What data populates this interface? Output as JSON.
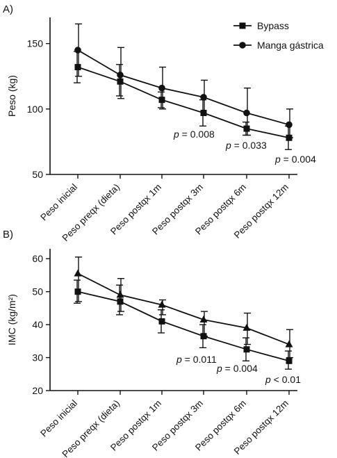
{
  "chart_data": [
    {
      "panel_label": "A)",
      "type": "line",
      "ylabel": "Peso (kg)",
      "ylim": [
        50,
        170
      ],
      "yticks": [
        "150",
        "100",
        "50"
      ],
      "ytick_values": [
        150,
        100,
        50
      ],
      "categories": [
        "Peso inicial",
        "Peso preqx (dieta)",
        "Peso postqx 1m",
        "Peso postqx 3m",
        "Peso postqx 6m",
        "Peso postqx 12m"
      ],
      "legend": {
        "position": "top-right",
        "items": [
          "Bypass",
          "Manga gástrica"
        ]
      },
      "series": [
        {
          "name": "Bypass",
          "marker": "square",
          "values": [
            132,
            121,
            107,
            97,
            85,
            78
          ],
          "err_low": [
            120,
            110,
            101,
            87,
            80,
            69
          ],
          "err_high": [
            144,
            134,
            113,
            107,
            90,
            87
          ]
        },
        {
          "name": "Manga gástrica",
          "marker": "circle",
          "values": [
            145,
            126,
            116,
            109,
            97,
            88
          ],
          "err_low": [
            125,
            108,
            100,
            96,
            80,
            78
          ],
          "err_high": [
            165,
            147,
            132,
            122,
            116,
            100
          ]
        }
      ],
      "annotations": [
        {
          "p": "p",
          "rest": " = 0.008",
          "x_index": 3
        },
        {
          "p": "p",
          "rest": " = 0.033",
          "x_index": 4
        },
        {
          "p": "p",
          "rest": " = 0.004",
          "x_index": 5
        }
      ]
    },
    {
      "panel_label": "B)",
      "type": "line",
      "ylabel": "IMC (kg/m²)",
      "ylim": [
        20,
        63
      ],
      "yticks": [
        "60",
        "50",
        "40",
        "30",
        "20"
      ],
      "ytick_values": [
        60,
        50,
        40,
        30,
        20
      ],
      "categories": [
        "Peso inicial",
        "Peso preqx (dieta)",
        "Peso postqx 1m",
        "Peso postqx 3m",
        "Peso postqx 6m",
        "Peso postqx 12m"
      ],
      "series": [
        {
          "name": "Bypass",
          "marker": "square",
          "values": [
            50,
            47,
            41,
            36.5,
            32.5,
            29
          ],
          "err_low": [
            46.5,
            43,
            37.5,
            33,
            29,
            26.5
          ],
          "err_high": [
            53.5,
            52,
            44.5,
            40,
            36,
            32
          ]
        },
        {
          "name": "Manga gástrica",
          "marker": "triangle",
          "values": [
            55.5,
            49,
            46,
            41.5,
            39,
            34
          ],
          "err_low": [
            47,
            44,
            43,
            36.5,
            34,
            30
          ],
          "err_high": [
            60.5,
            54,
            47.5,
            44,
            43.5,
            38.5
          ]
        }
      ],
      "annotations": [
        {
          "p": "p",
          "rest": " = 0.011",
          "x_index": 3
        },
        {
          "p": "p",
          "rest": " = 0.004",
          "x_index": 4
        },
        {
          "p": "p",
          "rest": " < 0.01",
          "x_index": 5
        }
      ]
    }
  ]
}
